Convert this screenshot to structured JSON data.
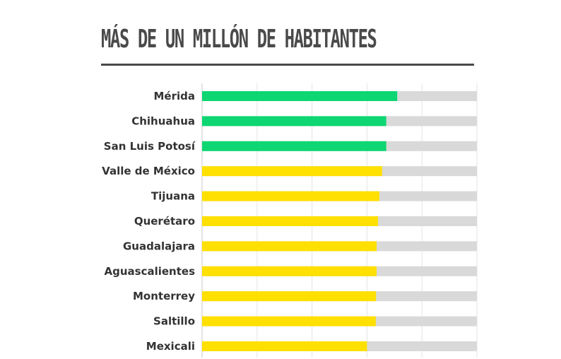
{
  "chart_data": {
    "type": "bar",
    "orientation": "horizontal",
    "title": "MÁS DE UN MILLÓN DE HABITANTES",
    "xlabel": "",
    "ylabel": "",
    "xlim": [
      0,
      100
    ],
    "grid": true,
    "categories": [
      "Mérida",
      "Chihuahua",
      "San Luis Potosí",
      "Valle de México",
      "Tijuana",
      "Querétaro",
      "Guadalajara",
      "Aguascalientes",
      "Monterrey",
      "Saltillo",
      "Mexicali"
    ],
    "values": [
      71,
      67,
      67,
      65.5,
      64.5,
      64,
      63.5,
      63.5,
      63.3,
      63.2,
      60
    ],
    "bar_colors": [
      "#0dd672",
      "#0dd672",
      "#0dd672",
      "#ffe000",
      "#ffe000",
      "#ffe000",
      "#ffe000",
      "#ffe000",
      "#ffe000",
      "#ffe000",
      "#ffe000"
    ],
    "track_color": "#d9d9d9",
    "grid_color": "#e4e4e4",
    "label_color": "#333333",
    "title_color": "#4a4a4a"
  }
}
